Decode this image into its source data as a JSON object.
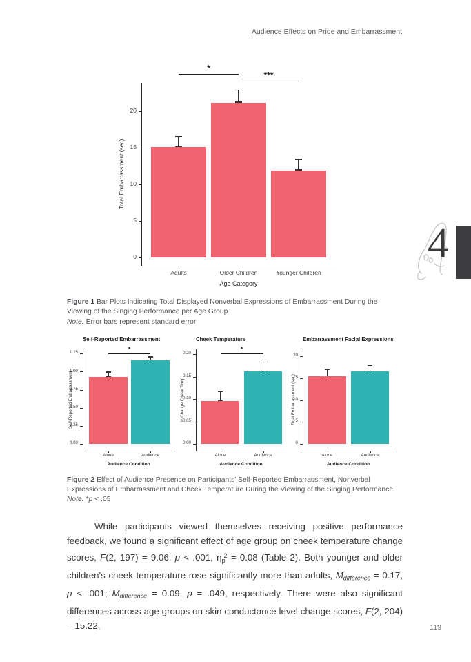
{
  "page": {
    "running_head": "Audience Effects on Pride and Embarrassment",
    "page_number": "119",
    "chapter_number": "4"
  },
  "colors": {
    "bar_red": "#F0626E",
    "bar_teal": "#2FB3B3",
    "axis": "#2D2D2D",
    "error_bar": "#333333",
    "caption_gray": "#55565A",
    "chapter_tab": "#3D3D40"
  },
  "figure1": {
    "label": "Figure 1",
    "caption": "Bar Plots Indicating Total Displayed Nonverbal Expressions of Embarrassment During the Viewing of the Singing Performance per Age Group",
    "note_label": "Note.",
    "note_text": "Error bars represent standard error"
  },
  "figure2": {
    "label": "Figure 2",
    "caption": "Effect of Audience Presence on Participants' Self-Reported Embarrassment, Nonverbal Expressions of Embarrassment and Cheek Temperature During the Viewing of the Singing Performance",
    "note_label": "Note.",
    "note_runs": [
      {
        "t": "*"
      },
      {
        "t": "p",
        "i": true
      },
      {
        "t": " < .05"
      }
    ]
  },
  "body_paragraph": {
    "runs": [
      {
        "t": "While participants viewed themselves receiving positive performance feedback, we found a significant effect of age group on cheek temperature change scores, "
      },
      {
        "t": "F",
        "i": true
      },
      {
        "t": "(2, 197) = 9.06, "
      },
      {
        "t": "p",
        "i": true
      },
      {
        "t": " < .001, η"
      },
      {
        "t": "p",
        "sub": true
      },
      {
        "t": "2",
        "sup": true
      },
      {
        "t": " = 0.08 (Table 2). Both younger and older children's cheek temperature rose significantly more than adults, "
      },
      {
        "t": "M",
        "i": true
      },
      {
        "t": "difference",
        "i": true,
        "sub": true
      },
      {
        "t": " = 0.17, "
      },
      {
        "t": "p",
        "i": true
      },
      {
        "t": " < .001; "
      },
      {
        "t": "M",
        "i": true
      },
      {
        "t": "difference",
        "i": true,
        "sub": true
      },
      {
        "t": " = 0.09, "
      },
      {
        "t": "p",
        "i": true
      },
      {
        "t": " = .049, respectively. There were also significant differences across age groups on skin conductance level change scores, "
      },
      {
        "t": "F",
        "i": true
      },
      {
        "t": "(2, 204) = 15.22,"
      }
    ]
  },
  "chart_data": [
    {
      "id": "fig1",
      "type": "bar",
      "title": "",
      "categories": [
        "Adults",
        "Older Children",
        "Younger Children"
      ],
      "values": [
        15.1,
        21.2,
        11.9
      ],
      "se": [
        1.5,
        1.8,
        1.6
      ],
      "xlabel": "Age Category",
      "ylabel": "Total Embarrassment (sec)",
      "ylim": [
        0,
        23.9
      ],
      "yticks": [
        0,
        5,
        10,
        15,
        20
      ],
      "ytick_labels": [
        "0",
        "5",
        "10",
        "15",
        "20"
      ],
      "bar_color": "#F0626E",
      "grid": false,
      "legend": "none",
      "annotations": [
        {
          "between": [
            0,
            1
          ],
          "label": "*",
          "line_color": "#1a1a1a",
          "label_color": "#1a1a1a"
        },
        {
          "between": [
            1,
            2
          ],
          "label": "***",
          "line_color": "#8a8a8a",
          "label_color": "#2a2a2a"
        }
      ]
    },
    {
      "id": "fig2a",
      "type": "bar",
      "title": "Self-Reported Embarrassment",
      "categories": [
        "Alone",
        "Audience"
      ],
      "values": [
        0.93,
        1.16
      ],
      "se": [
        0.07,
        0.05
      ],
      "xlabel": "Audience Condition",
      "ylabel": "Self-Reported Embarrassment",
      "ylim": [
        0,
        1.31
      ],
      "yticks": [
        0,
        0.25,
        0.5,
        0.75,
        1,
        1.25
      ],
      "ytick_labels": [
        "0.00",
        "0.25",
        "0.50",
        "0.75",
        "1.00",
        "1.25"
      ],
      "bar_colors": [
        "#F0626E",
        "#2FB3B3"
      ],
      "grid": false,
      "legend": "none",
      "annotations": [
        {
          "between": [
            0,
            1
          ],
          "label": "*",
          "line_color": "#1a1a1a",
          "label_color": "#1a1a1a"
        }
      ]
    },
    {
      "id": "fig2b",
      "type": "bar",
      "title": "Cheek Temperature",
      "categories": [
        "Alone",
        "Audience"
      ],
      "values": [
        0.095,
        0.162
      ],
      "se": [
        0.022,
        0.022
      ],
      "xlabel": "Audience Condition",
      "ylabel": "% Change Cheek Temp",
      "ylim": [
        0,
        0.211
      ],
      "yticks": [
        0,
        0.05,
        0.1,
        0.15,
        0.2
      ],
      "ytick_labels": [
        "0.00",
        "0.05",
        "0.10",
        "0.15",
        "0.20"
      ],
      "bar_colors": [
        "#F0626E",
        "#2FB3B3"
      ],
      "grid": false,
      "legend": "none",
      "annotations": [
        {
          "between": [
            0,
            1
          ],
          "label": "*",
          "line_color": "#1a1a1a",
          "label_color": "#1a1a1a"
        }
      ]
    },
    {
      "id": "fig2c",
      "type": "bar",
      "title": "Embarrassment Facial Expressions",
      "categories": [
        "Alone",
        "Audience"
      ],
      "values": [
        15.5,
        16.6
      ],
      "se": [
        1.5,
        1.4
      ],
      "xlabel": "Audience Condition",
      "ylabel": "Total Embarrassment (sec)",
      "ylim": [
        0,
        21.6
      ],
      "yticks": [
        0,
        5,
        10,
        15,
        20
      ],
      "ytick_labels": [
        "0",
        "5",
        "10",
        "15",
        "20"
      ],
      "bar_colors": [
        "#F0626E",
        "#2FB3B3"
      ],
      "grid": false,
      "legend": "none",
      "annotations": []
    }
  ]
}
